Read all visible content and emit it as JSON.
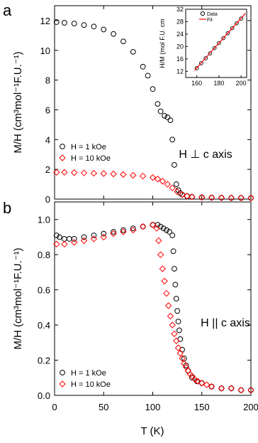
{
  "chart_data": [
    {
      "type": "scatter",
      "panel_label": "a",
      "annotation": "H ⊥ c axis",
      "ylabel": "M/H (cm³mol⁻¹F.U.⁻¹)",
      "xlim": [
        0,
        200
      ],
      "ylim": [
        0,
        13
      ],
      "yticks": [
        0,
        2,
        4,
        6,
        8,
        10,
        12
      ],
      "grid": false,
      "legend_position": "middle-left",
      "series": [
        {
          "name": "H = 1 kOe",
          "marker": "circle",
          "color": "#000000",
          "x": [
            2,
            10,
            20,
            30,
            40,
            50,
            60,
            70,
            80,
            90,
            95,
            100,
            105,
            108,
            112,
            115,
            118,
            120,
            122,
            124,
            126,
            128,
            130,
            135,
            140,
            150,
            160,
            170,
            180,
            190,
            200
          ],
          "y": [
            11.9,
            11.85,
            11.8,
            11.7,
            11.6,
            11.4,
            11.1,
            10.6,
            9.9,
            8.9,
            8.3,
            7.4,
            6.4,
            5.9,
            5.6,
            5.5,
            5.3,
            4.0,
            2.3,
            1.0,
            0.6,
            0.4,
            0.3,
            0.2,
            0.15,
            0.12,
            0.1,
            0.09,
            0.08,
            0.08,
            0.07
          ]
        },
        {
          "name": "H = 10 kOe",
          "marker": "diamond",
          "color": "#ff0000",
          "x": [
            2,
            10,
            20,
            30,
            40,
            50,
            60,
            70,
            80,
            90,
            100,
            105,
            110,
            115,
            120,
            125,
            130,
            135,
            140,
            150,
            160,
            170,
            180,
            190,
            200
          ],
          "y": [
            1.8,
            1.8,
            1.78,
            1.76,
            1.74,
            1.72,
            1.69,
            1.65,
            1.6,
            1.55,
            1.45,
            1.35,
            1.2,
            1.0,
            0.75,
            0.5,
            0.3,
            0.2,
            0.15,
            0.12,
            0.1,
            0.09,
            0.08,
            0.08,
            0.07
          ]
        }
      ],
      "inset": {
        "type": "scatter",
        "ylabel": "H/M (mol F.U. cm",
        "xlim": [
          150,
          205
        ],
        "ylim": [
          10,
          32
        ],
        "xticks": [
          160,
          180,
          200
        ],
        "yticks": [
          12,
          16,
          20,
          24,
          28,
          32
        ],
        "legend": [
          "Data",
          "Fit"
        ],
        "series": [
          {
            "name": "Data",
            "marker": "circle",
            "color": "#000000",
            "x": [
              160,
              164,
              168,
              172,
              176,
              180,
              184,
              188,
              192,
              196,
              200
            ],
            "y": [
              13,
              14.6,
              16.2,
              17.8,
              19.5,
              21.1,
              22.7,
              24.3,
              25.9,
              27.5,
              29
            ]
          },
          {
            "name": "Fit",
            "type": "line",
            "color": "#ff0000",
            "x": [
              158,
              204
            ],
            "y": [
              12.3,
              30.7
            ]
          }
        ]
      }
    },
    {
      "type": "scatter",
      "panel_label": "b",
      "annotation": "H || c axis",
      "xlabel": "T (K)",
      "ylabel": "M/H (cm³mol⁻¹F.U.⁻¹)",
      "xlim": [
        0,
        200
      ],
      "ylim": [
        0,
        1.1
      ],
      "xticks": [
        0,
        50,
        100,
        150,
        200
      ],
      "yticks": [
        0.0,
        0.2,
        0.4,
        0.6,
        0.8,
        1.0
      ],
      "grid": false,
      "legend_position": "bottom-left",
      "series": [
        {
          "name": "H = 1 kOe",
          "marker": "circle",
          "color": "#000000",
          "x": [
            2,
            5,
            10,
            15,
            20,
            30,
            40,
            50,
            60,
            70,
            80,
            90,
            100,
            105,
            108,
            111,
            114,
            117,
            120,
            121,
            122,
            123,
            124,
            125,
            126,
            127,
            128,
            130,
            132,
            134,
            136,
            140,
            145,
            150,
            160,
            170,
            180,
            190,
            200
          ],
          "y": [
            0.91,
            0.9,
            0.89,
            0.89,
            0.89,
            0.9,
            0.91,
            0.92,
            0.93,
            0.94,
            0.95,
            0.96,
            0.97,
            0.97,
            0.96,
            0.95,
            0.94,
            0.93,
            0.91,
            0.82,
            0.72,
            0.63,
            0.55,
            0.48,
            0.42,
            0.37,
            0.32,
            0.26,
            0.21,
            0.17,
            0.14,
            0.1,
            0.08,
            0.07,
            0.05,
            0.04,
            0.04,
            0.03,
            0.03
          ]
        },
        {
          "name": "H = 10 kOe",
          "marker": "diamond",
          "color": "#ff0000",
          "x": [
            2,
            10,
            20,
            30,
            40,
            50,
            60,
            70,
            80,
            90,
            100,
            104,
            106,
            108,
            110,
            112,
            114,
            116,
            118,
            120,
            122,
            124,
            126,
            128,
            130,
            132,
            134,
            136,
            138,
            140,
            143,
            146,
            150,
            155,
            160,
            170,
            180,
            190,
            200
          ],
          "y": [
            0.86,
            0.86,
            0.87,
            0.88,
            0.89,
            0.9,
            0.92,
            0.93,
            0.94,
            0.96,
            0.97,
            0.95,
            0.88,
            0.8,
            0.72,
            0.65,
            0.58,
            0.51,
            0.45,
            0.4,
            0.35,
            0.31,
            0.27,
            0.24,
            0.21,
            0.18,
            0.16,
            0.14,
            0.12,
            0.11,
            0.09,
            0.08,
            0.07,
            0.06,
            0.05,
            0.04,
            0.04,
            0.03,
            0.03
          ]
        }
      ]
    }
  ],
  "labels": {
    "panel_a": "a",
    "panel_b": "b",
    "legend_a_1": "H = 1 kOe",
    "legend_a_2": "H = 10 kOe",
    "legend_b_1": "H = 1 kOe",
    "legend_b_2": "H = 10 kOe",
    "annot_a": "H ⊥ c axis",
    "annot_b": "H || c axis",
    "xlabel": "T (K)",
    "ylabel_a": "M/H (cm³mol⁻¹F.U.⁻¹)",
    "ylabel_b": "M/H (cm³mol⁻¹F.U.⁻¹)",
    "inset_ylabel": "H/M (mol F.U. cm",
    "inset_legend_data": "Data",
    "inset_legend_fit": "Fit"
  }
}
